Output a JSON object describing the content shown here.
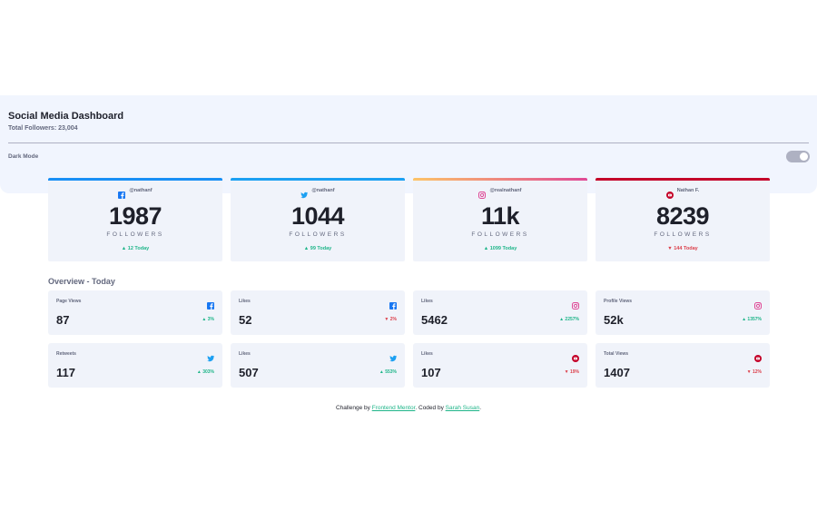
{
  "header": {
    "title": "Social Media Dashboard",
    "total_followers": "Total Followers: 23,004",
    "dark_mode_label": "Dark Mode"
  },
  "cards": [
    {
      "platform": "facebook",
      "icon": "facebook-icon",
      "handle": "@nathanf",
      "count": "1987",
      "label": "FOLLOWERS",
      "today": "12 Today",
      "trend": "up",
      "accent": "#198ff5"
    },
    {
      "platform": "twitter",
      "icon": "twitter-icon",
      "handle": "@nathanf",
      "count": "1044",
      "label": "FOLLOWERS",
      "today": "99 Today",
      "trend": "up",
      "accent": "#1ca0f2"
    },
    {
      "platform": "instagram",
      "icon": "instagram-icon",
      "handle": "@realnathanf",
      "count": "11k",
      "label": "FOLLOWERS",
      "today": "1099 Today",
      "trend": "up",
      "accent": "#df4996"
    },
    {
      "platform": "youtube",
      "icon": "youtube-icon",
      "handle": "Nathan F.",
      "count": "8239",
      "label": "FOLLOWERS",
      "today": "144 Today",
      "trend": "down",
      "accent": "#c4032a"
    }
  ],
  "overview": {
    "title": "Overview - Today",
    "tiles": [
      {
        "label": "Page Views",
        "icon": "facebook-icon",
        "value": "87",
        "pct": "3%",
        "trend": "up"
      },
      {
        "label": "Likes",
        "icon": "facebook-icon",
        "value": "52",
        "pct": "2%",
        "trend": "down"
      },
      {
        "label": "Likes",
        "icon": "instagram-icon",
        "value": "5462",
        "pct": "2257%",
        "trend": "up"
      },
      {
        "label": "Profile Views",
        "icon": "instagram-icon",
        "value": "52k",
        "pct": "1357%",
        "trend": "up"
      },
      {
        "label": "Retweets",
        "icon": "twitter-icon",
        "value": "117",
        "pct": "303%",
        "trend": "up"
      },
      {
        "label": "Likes",
        "icon": "twitter-icon",
        "value": "507",
        "pct": "553%",
        "trend": "up"
      },
      {
        "label": "Likes",
        "icon": "youtube-icon",
        "value": "107",
        "pct": "19%",
        "trend": "down"
      },
      {
        "label": "Total Views",
        "icon": "youtube-icon",
        "value": "1407",
        "pct": "12%",
        "trend": "down"
      }
    ]
  },
  "footer": {
    "prefix": "Challenge by ",
    "link1": "Frontend Mentor",
    "middle": ". Coded by ",
    "link2": "Sarah Susan",
    "suffix": "."
  },
  "colors": {
    "up": "#1eb589",
    "down": "#dc414c",
    "facebook": "#198ff5",
    "twitter": "#1ca0f2",
    "instagram": "#df4996",
    "youtube": "#c4032a"
  }
}
